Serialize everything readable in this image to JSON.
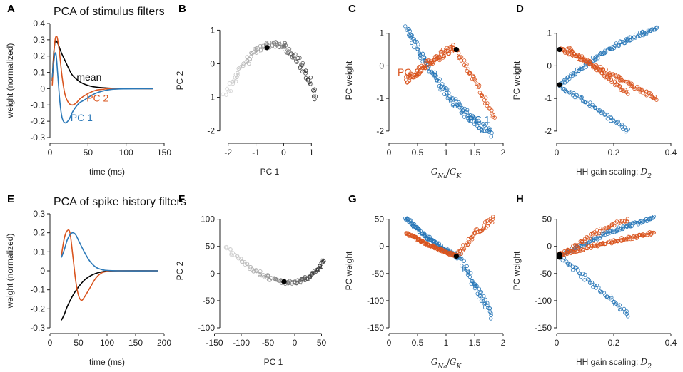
{
  "colors": {
    "pc1": "#2a78b8",
    "pc2": "#d9541e",
    "mean": "#000000",
    "axis": "#222222"
  },
  "chart_data": [
    {
      "id": "A",
      "type": "line",
      "panel_label": "A",
      "title": "PCA of stimulus filters",
      "xlabel": "time (ms)",
      "ylabel": "weight (normalized)",
      "xlim": [
        0,
        150
      ],
      "ylim": [
        -0.3,
        0.4
      ],
      "xticks": [
        0,
        50,
        100,
        150
      ],
      "xtick_labels": [
        "0",
        "50",
        "100",
        "150"
      ],
      "yticks": [
        -0.3,
        -0.2,
        -0.1,
        0,
        0.1,
        0.2,
        0.3,
        0.4
      ],
      "ytick_labels": [
        "-0.3",
        "-0.2",
        "-0.1",
        "0",
        "0.1",
        "0.2",
        "0.3",
        "0.4"
      ],
      "annotations": [
        {
          "text": "mean",
          "color": "mean",
          "x": 35,
          "y": 0.05
        },
        {
          "text": "PC 2",
          "color": "pc2",
          "x": 48,
          "y": -0.08
        },
        {
          "text": "PC 1",
          "color": "pc1",
          "x": 27,
          "y": -0.2
        }
      ],
      "series": [
        {
          "name": "mean",
          "color": "mean",
          "points": [
            [
              3,
              0.05
            ],
            [
              5,
              0.22
            ],
            [
              7,
              0.29
            ],
            [
              10,
              0.28
            ],
            [
              15,
              0.22
            ],
            [
              20,
              0.17
            ],
            [
              25,
              0.12
            ],
            [
              30,
              0.08
            ],
            [
              40,
              0.04
            ],
            [
              50,
              0.02
            ],
            [
              60,
              0.01
            ],
            [
              80,
              0.003
            ],
            [
              100,
              0.001
            ],
            [
              135,
              0
            ]
          ]
        },
        {
          "name": "PC 2",
          "color": "pc2",
          "points": [
            [
              3,
              0.02
            ],
            [
              6,
              0.27
            ],
            [
              9,
              0.32
            ],
            [
              12,
              0.24
            ],
            [
              16,
              0.07
            ],
            [
              20,
              -0.04
            ],
            [
              25,
              -0.09
            ],
            [
              30,
              -0.1
            ],
            [
              35,
              -0.085
            ],
            [
              40,
              -0.06
            ],
            [
              50,
              -0.03
            ],
            [
              60,
              -0.01
            ],
            [
              70,
              -0.004
            ],
            [
              80,
              0
            ],
            [
              135,
              0
            ]
          ]
        },
        {
          "name": "PC 1",
          "color": "pc1",
          "points": [
            [
              3,
              0.07
            ],
            [
              6,
              0.2
            ],
            [
              8,
              0.21
            ],
            [
              10,
              0.1
            ],
            [
              13,
              -0.08
            ],
            [
              16,
              -0.18
            ],
            [
              20,
              -0.21
            ],
            [
              25,
              -0.19
            ],
            [
              30,
              -0.14
            ],
            [
              38,
              -0.09
            ],
            [
              45,
              -0.07
            ],
            [
              55,
              -0.04
            ],
            [
              65,
              -0.02
            ],
            [
              80,
              -0.005
            ],
            [
              100,
              -0.001
            ],
            [
              135,
              0
            ]
          ]
        }
      ]
    },
    {
      "id": "B",
      "type": "scatter",
      "panel_label": "B",
      "xlabel": "PC 1",
      "ylabel": "PC 2",
      "xlim": [
        -2.3,
        1.3
      ],
      "ylim": [
        -2.2,
        1.2
      ],
      "xticks": [
        -2,
        -1,
        0,
        1
      ],
      "xtick_labels": [
        "-2",
        "-1",
        "0",
        "1"
      ],
      "yticks": [
        -2,
        -1,
        0,
        1
      ],
      "ytick_labels": [
        "-2",
        "-1",
        "0",
        "1"
      ],
      "highlight": {
        "x": -0.6,
        "y": 0.48
      },
      "arc": {
        "from": {
          "x": -2.1,
          "y": -0.9
        },
        "to": {
          "x": 1.15,
          "y": -1.0
        },
        "apex": {
          "x": -0.3,
          "y": 0.58
        },
        "count": 110,
        "scatter": 0.09
      }
    },
    {
      "id": "C",
      "type": "scatter",
      "panel_label": "C",
      "xlabel": "G_Na/G_K",
      "ylabel": "PC weight",
      "xlim": [
        0,
        2
      ],
      "ylim": [
        -2.2,
        1.3
      ],
      "xticks": [
        0,
        0.5,
        1,
        1.5,
        2
      ],
      "xtick_labels": [
        "0",
        "0.5",
        "1",
        "1.5",
        "2"
      ],
      "yticks": [
        -2,
        -1,
        0,
        1
      ],
      "ytick_labels": [
        "-2",
        "-1",
        "0",
        "1"
      ],
      "annotations": [
        {
          "text": "PC 2",
          "color": "pc2",
          "x": 0.15,
          "y": -0.3
        },
        {
          "text": "PC 1",
          "color": "pc1",
          "x": 1.38,
          "y": -1.75
        }
      ],
      "highlight": [
        {
          "x": 1.18,
          "y": 0.5
        }
      ],
      "clouds": [
        {
          "name": "PC 1",
          "color": "pc1",
          "from": {
            "x": 0.3,
            "y": 1.15
          },
          "to": {
            "x": 1.8,
            "y": -2.05
          },
          "bend": -0.45,
          "count": 140,
          "spread": 0.14
        },
        {
          "name": "PC 2",
          "color": "pc2",
          "from": {
            "x": 0.3,
            "y": -0.45
          },
          "to": {
            "x": 1.12,
            "y": 0.55
          },
          "bend": 0.05,
          "count": 90,
          "spread": 0.12
        },
        {
          "name": "PC 2 tail",
          "color": "pc2",
          "from": {
            "x": 1.12,
            "y": 0.55
          },
          "to": {
            "x": 1.85,
            "y": -1.6
          },
          "bend": 0.1,
          "count": 45,
          "spread": 0.1
        }
      ]
    },
    {
      "id": "D",
      "type": "scatter",
      "panel_label": "D",
      "xlabel": "HH gain scaling: D_2",
      "ylabel": "PC weight",
      "xlim": [
        0,
        0.4
      ],
      "ylim": [
        -2.2,
        1.3
      ],
      "xticks": [
        0,
        0.2,
        0.4
      ],
      "xtick_labels": [
        "0",
        "0.2",
        "0.4"
      ],
      "yticks": [
        -2,
        -1,
        0,
        1
      ],
      "ytick_labels": [
        "-2",
        "-1",
        "0",
        "1"
      ],
      "highlight": [
        {
          "x": 0.01,
          "y": 0.5
        },
        {
          "x": 0.01,
          "y": -0.58
        }
      ],
      "clouds": [
        {
          "name": "PC 1",
          "color": "pc1",
          "from": {
            "x": 0.01,
            "y": -0.6
          },
          "to": {
            "x": 0.35,
            "y": 1.15
          },
          "bend": 0.2,
          "count": 110,
          "spread": 0.06
        },
        {
          "name": "PC 1 low",
          "color": "pc1",
          "from": {
            "x": 0.02,
            "y": -0.7
          },
          "to": {
            "x": 0.25,
            "y": -2.0
          },
          "bend": 0.05,
          "count": 55,
          "spread": 0.06
        },
        {
          "name": "PC 2",
          "color": "pc2",
          "from": {
            "x": 0.01,
            "y": 0.55
          },
          "to": {
            "x": 0.35,
            "y": -1.0
          },
          "bend": 0.02,
          "count": 110,
          "spread": 0.06
        },
        {
          "name": "PC 2 low",
          "color": "pc2",
          "from": {
            "x": 0.04,
            "y": 0.55
          },
          "to": {
            "x": 0.25,
            "y": -0.85
          },
          "bend": 0.02,
          "count": 60,
          "spread": 0.05
        }
      ]
    },
    {
      "id": "E",
      "type": "line",
      "panel_label": "E",
      "title": "PCA of spike history filters",
      "xlabel": "time (ms)",
      "ylabel": "weight (normalized)",
      "xlim": [
        0,
        200
      ],
      "ylim": [
        -0.3,
        0.3
      ],
      "xticks": [
        0,
        50,
        100,
        150,
        200
      ],
      "xtick_labels": [
        "0",
        "50",
        "100",
        "150",
        "200"
      ],
      "yticks": [
        -0.3,
        -0.2,
        -0.1,
        0,
        0.1,
        0.2,
        0.3
      ],
      "ytick_labels": [
        "-0.3",
        "-0.2",
        "-0.1",
        "0",
        "0.1",
        "0.2",
        "0.3"
      ],
      "series": [
        {
          "name": "mean",
          "color": "mean",
          "points": [
            [
              20,
              -0.26
            ],
            [
              25,
              -0.23
            ],
            [
              30,
              -0.19
            ],
            [
              40,
              -0.13
            ],
            [
              50,
              -0.085
            ],
            [
              60,
              -0.05
            ],
            [
              70,
              -0.028
            ],
            [
              80,
              -0.014
            ],
            [
              90,
              -0.006
            ],
            [
              100,
              -0.002
            ],
            [
              120,
              0
            ],
            [
              190,
              0
            ]
          ]
        },
        {
          "name": "PC 2",
          "color": "pc2",
          "points": [
            [
              20,
              0.08
            ],
            [
              25,
              0.17
            ],
            [
              30,
              0.21
            ],
            [
              35,
              0.2
            ],
            [
              40,
              0.08
            ],
            [
              45,
              -0.05
            ],
            [
              50,
              -0.13
            ],
            [
              55,
              -0.155
            ],
            [
              60,
              -0.14
            ],
            [
              70,
              -0.09
            ],
            [
              80,
              -0.04
            ],
            [
              90,
              -0.012
            ],
            [
              100,
              -0.003
            ],
            [
              110,
              0
            ],
            [
              190,
              0
            ]
          ]
        },
        {
          "name": "PC 1",
          "color": "pc1",
          "points": [
            [
              20,
              0.07
            ],
            [
              25,
              0.11
            ],
            [
              30,
              0.16
            ],
            [
              35,
              0.19
            ],
            [
              40,
              0.2
            ],
            [
              45,
              0.19
            ],
            [
              50,
              0.16
            ],
            [
              60,
              0.1
            ],
            [
              70,
              0.05
            ],
            [
              80,
              0.02
            ],
            [
              90,
              0.007
            ],
            [
              100,
              0.002
            ],
            [
              120,
              0
            ],
            [
              190,
              0
            ]
          ]
        }
      ]
    },
    {
      "id": "F",
      "type": "scatter",
      "panel_label": "F",
      "xlabel": "PC 1",
      "ylabel": "PC 2",
      "xlim": [
        -140,
        60
      ],
      "ylim": [
        -100,
        110
      ],
      "xticks": [
        -150,
        -100,
        -50,
        0,
        50
      ],
      "xtick_labels": [
        "-150",
        "-100",
        "-50",
        "0",
        "50"
      ],
      "yticks": [
        -100,
        -50,
        0,
        50,
        100
      ],
      "ytick_labels": [
        "-100",
        "-50",
        "0",
        "50",
        "100"
      ],
      "highlight": {
        "x": -20,
        "y": -15
      },
      "arc": {
        "from": {
          "x": -130,
          "y": 50
        },
        "to": {
          "x": 55,
          "y": 25
        },
        "apex": {
          "x": -20,
          "y": -16
        },
        "count": 110,
        "scatter": 3
      }
    },
    {
      "id": "G",
      "type": "scatter",
      "panel_label": "G",
      "xlabel": "G_Na/G_K",
      "ylabel": "PC weight",
      "xlim": [
        0,
        2
      ],
      "ylim": [
        -150,
        60
      ],
      "xticks": [
        0,
        0.5,
        1,
        1.5,
        2
      ],
      "xtick_labels": [
        "0",
        "0.5",
        "1",
        "1.5",
        "2"
      ],
      "yticks": [
        -150,
        -100,
        -50,
        0,
        50
      ],
      "ytick_labels": [
        "-150",
        "-100",
        "-50",
        "0",
        "50"
      ],
      "highlight": [
        {
          "x": 1.18,
          "y": -18
        }
      ],
      "clouds": [
        {
          "name": "PC 1",
          "color": "pc1",
          "from": {
            "x": 0.3,
            "y": 52
          },
          "to": {
            "x": 1.2,
            "y": -18
          },
          "bend": -0.1,
          "count": 120,
          "spread": 3
        },
        {
          "name": "PC 1 tail",
          "color": "pc1",
          "from": {
            "x": 1.2,
            "y": -18
          },
          "to": {
            "x": 1.8,
            "y": -128
          },
          "bend": 0.05,
          "count": 55,
          "spread": 8
        },
        {
          "name": "PC 2",
          "color": "pc2",
          "from": {
            "x": 0.3,
            "y": 25
          },
          "to": {
            "x": 1.2,
            "y": -18
          },
          "bend": -0.05,
          "count": 120,
          "spread": 2
        },
        {
          "name": "PC 2 tail",
          "color": "pc2",
          "from": {
            "x": 1.2,
            "y": -18
          },
          "to": {
            "x": 1.82,
            "y": 50
          },
          "bend": 0.1,
          "count": 45,
          "spread": 6
        }
      ]
    },
    {
      "id": "H",
      "type": "scatter",
      "panel_label": "H",
      "xlabel": "HH gain scaling: D_2",
      "ylabel": "PC weight",
      "xlim": [
        0,
        0.4
      ],
      "ylim": [
        -150,
        60
      ],
      "xticks": [
        0,
        0.2,
        0.4
      ],
      "xtick_labels": [
        "0",
        "0.2",
        "0.4"
      ],
      "yticks": [
        -150,
        -100,
        -50,
        0,
        50
      ],
      "ytick_labels": [
        "-150",
        "-100",
        "-50",
        "0",
        "50"
      ],
      "highlight": [
        {
          "x": 0.01,
          "y": -15
        },
        {
          "x": 0.01,
          "y": -20
        }
      ],
      "clouds": [
        {
          "name": "PC 1",
          "color": "pc1",
          "from": {
            "x": 0.01,
            "y": -18
          },
          "to": {
            "x": 0.34,
            "y": 52
          },
          "bend": 0.1,
          "count": 110,
          "spread": 3
        },
        {
          "name": "PC 1 low",
          "color": "pc1",
          "from": {
            "x": 0.02,
            "y": -22
          },
          "to": {
            "x": 0.25,
            "y": -125
          },
          "bend": 0.02,
          "count": 55,
          "spread": 5
        },
        {
          "name": "PC 2",
          "color": "pc2",
          "from": {
            "x": 0.01,
            "y": -15
          },
          "to": {
            "x": 0.34,
            "y": 25
          },
          "bend": 0.02,
          "count": 110,
          "spread": 3
        },
        {
          "name": "PC 2 low",
          "color": "pc2",
          "from": {
            "x": 0.03,
            "y": -12
          },
          "to": {
            "x": 0.25,
            "y": 50
          },
          "bend": 0.1,
          "count": 50,
          "spread": 4
        }
      ]
    }
  ]
}
